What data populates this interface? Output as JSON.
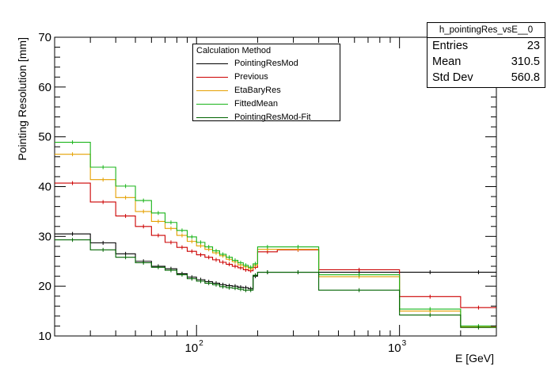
{
  "chart_data": {
    "type": "line",
    "xlabel": "E [GeV]",
    "ylabel": "Pointing Resolution [mm]",
    "xscale": "log",
    "xlim": [
      20,
      3000
    ],
    "ylim": [
      10,
      70
    ],
    "y_ticks": [
      10,
      20,
      30,
      40,
      50,
      60,
      70
    ],
    "x_ticks": [
      {
        "value": 100,
        "base": "10",
        "exp": "2"
      },
      {
        "value": 1000,
        "base": "10",
        "exp": "3"
      }
    ],
    "bin_edges": [
      20,
      30,
      40,
      50,
      60,
      70,
      80,
      90,
      100,
      110,
      120,
      130,
      140,
      150,
      160,
      170,
      180,
      190,
      200,
      250,
      400,
      1000,
      2000,
      3000
    ],
    "series": [
      {
        "name": "PointingResMod",
        "color": "#000000",
        "values": [
          30.5,
          28.7,
          26.5,
          25.0,
          24.0,
          23.5,
          22.5,
          21.8,
          21.3,
          20.9,
          20.6,
          20.3,
          20.1,
          20.0,
          19.8,
          19.7,
          19.5,
          22.0,
          22.8,
          22.8,
          22.8,
          22.8,
          22.8
        ]
      },
      {
        "name": "Previous",
        "color": "#cc0000",
        "values": [
          40.7,
          36.9,
          34.1,
          32.0,
          30.2,
          28.8,
          27.8,
          27.0,
          26.3,
          25.8,
          25.3,
          24.8,
          24.4,
          24.0,
          23.7,
          23.3,
          23.1,
          23.8,
          26.9,
          27.3,
          23.3,
          17.9,
          15.7
        ]
      },
      {
        "name": "EtaBaryRes",
        "color": "#e5a000",
        "values": [
          46.5,
          41.4,
          37.8,
          35.0,
          33.0,
          31.6,
          30.2,
          29.0,
          28.1,
          27.4,
          26.7,
          26.1,
          25.4,
          24.9,
          24.3,
          23.9,
          23.5,
          24.2,
          27.4,
          27.4,
          21.9,
          15.0,
          11.9
        ]
      },
      {
        "name": "FittedMean",
        "color": "#19b419",
        "values": [
          48.9,
          43.9,
          40.1,
          37.2,
          34.7,
          32.8,
          31.2,
          29.9,
          28.8,
          27.9,
          27.1,
          26.4,
          25.8,
          25.2,
          24.7,
          24.2,
          23.8,
          24.5,
          27.9,
          27.9,
          22.3,
          15.4,
          12.0
        ]
      },
      {
        "name": "PointingResMod-Fit",
        "color": "#006400",
        "values": [
          29.3,
          27.3,
          25.8,
          24.7,
          23.8,
          23.2,
          22.3,
          21.5,
          21.0,
          20.6,
          20.3,
          19.9,
          19.7,
          19.6,
          19.4,
          19.2,
          19.2,
          22.2,
          22.8,
          22.8,
          19.2,
          14.2,
          11.7
        ]
      }
    ]
  },
  "legend": {
    "title": "Calculation Method",
    "items": [
      {
        "label": "PointingResMod",
        "color": "#000000"
      },
      {
        "label": "Previous",
        "color": "#cc0000"
      },
      {
        "label": "EtaBaryRes",
        "color": "#e5a000"
      },
      {
        "label": "FittedMean",
        "color": "#19b419"
      },
      {
        "label": "PointingResMod-Fit",
        "color": "#006400"
      }
    ]
  },
  "stats": {
    "title": "h_pointingRes_vsE__0",
    "entries_label": "Entries",
    "entries_value": "23",
    "mean_label": "Mean",
    "mean_value": "310.5",
    "std_label": "Std Dev",
    "std_value": "560.8"
  }
}
